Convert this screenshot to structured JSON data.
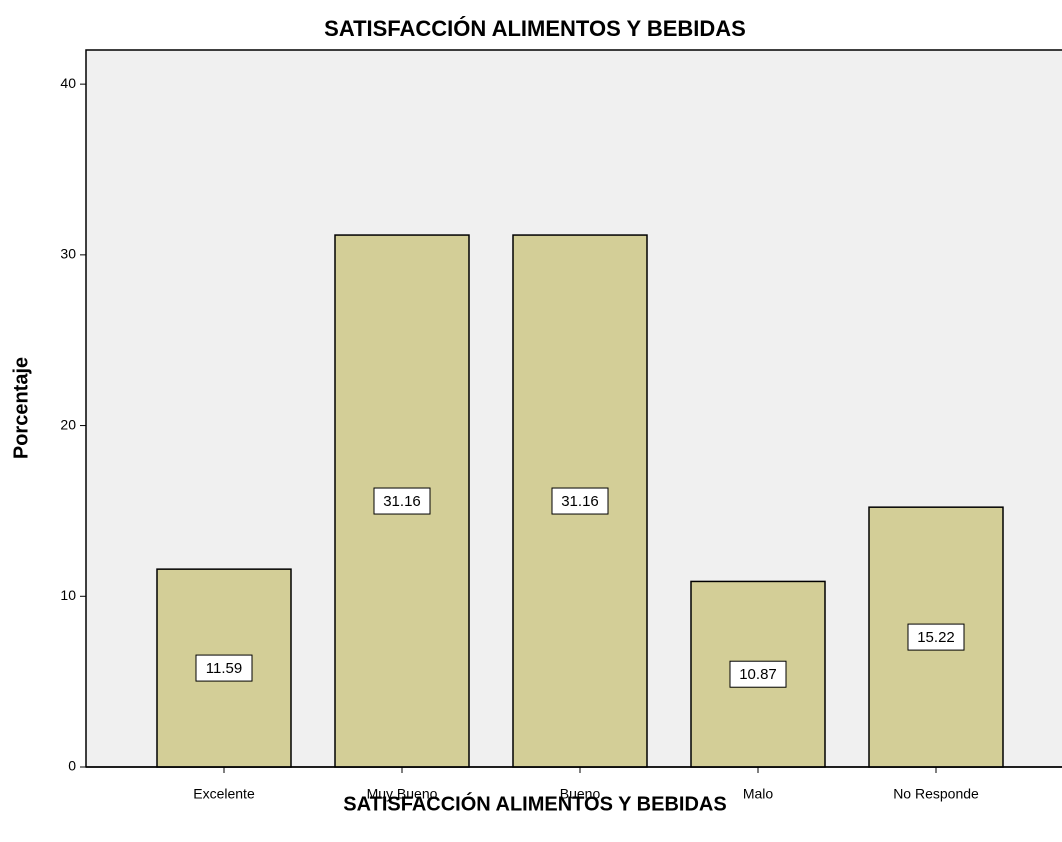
{
  "chart_data": {
    "type": "bar",
    "title": "SATISFACCIÓN ALIMENTOS Y BEBIDAS",
    "x_label": "SATISFACCIÓN ALIMENTOS Y BEBIDAS",
    "y_label": "Porcentaje",
    "categories": [
      "Excelente",
      "Muy Bueno",
      "Bueno",
      "Malo",
      "No Responde"
    ],
    "values": [
      11.59,
      31.16,
      31.16,
      10.87,
      15.22
    ],
    "color": "#d3ce97",
    "ylim": [
      0,
      42
    ],
    "yticks": [
      0,
      10,
      20,
      30,
      40
    ],
    "grid": false
  }
}
